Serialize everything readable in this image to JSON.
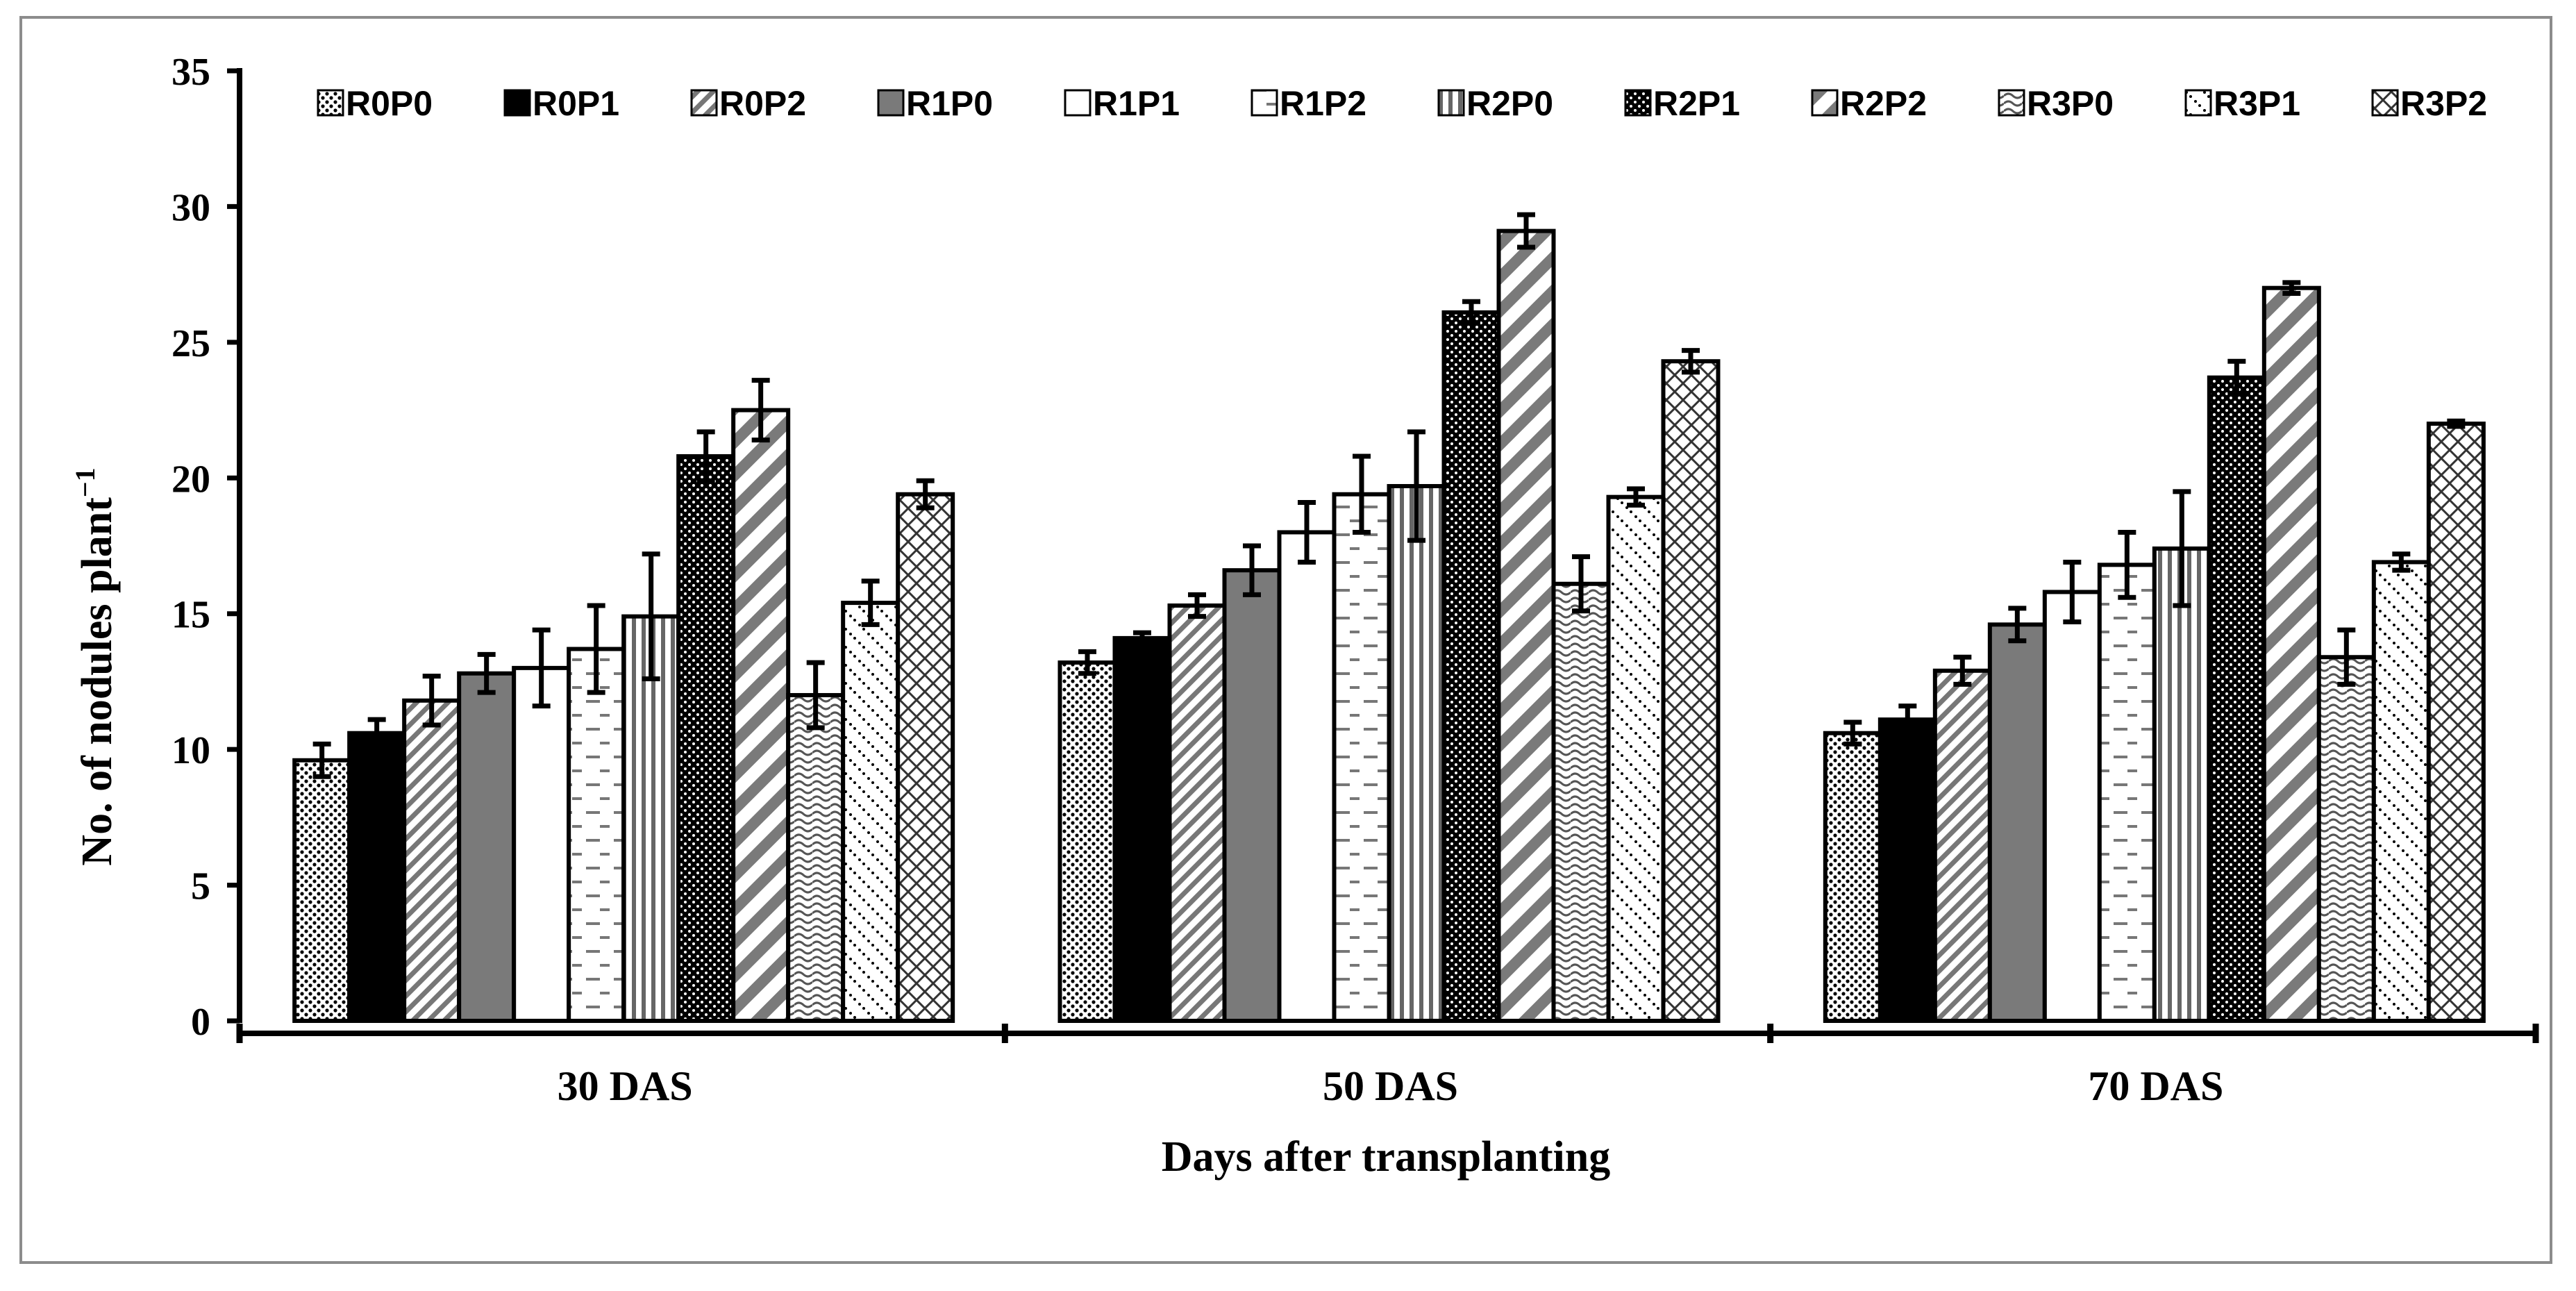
{
  "chart_data": {
    "type": "bar",
    "title": "",
    "xlabel": "Days after transplanting",
    "ylabel": "No. of nodules plant",
    "ylabel_superscript": "−1",
    "ylim": [
      0,
      35
    ],
    "yticks": [
      0,
      5,
      10,
      15,
      20,
      25,
      30,
      35
    ],
    "categories": [
      "30 DAS",
      "50 DAS",
      "70 DAS"
    ],
    "legend_position": "top",
    "series": [
      {
        "name": "R0P0",
        "pattern": "dots",
        "values": [
          9.6,
          13.2,
          10.6
        ],
        "errors": [
          0.6,
          0.4,
          0.4
        ]
      },
      {
        "name": "R0P1",
        "pattern": "solid-black",
        "values": [
          10.6,
          14.1,
          11.1
        ],
        "errors": [
          0.5,
          0.2,
          0.5
        ]
      },
      {
        "name": "R0P2",
        "pattern": "diag-fine",
        "values": [
          11.8,
          15.3,
          12.9
        ],
        "errors": [
          0.9,
          0.4,
          0.5
        ]
      },
      {
        "name": "R1P0",
        "pattern": "solid-gray",
        "values": [
          12.8,
          16.6,
          14.6
        ],
        "errors": [
          0.7,
          0.9,
          0.6
        ]
      },
      {
        "name": "R1P1",
        "pattern": "white",
        "values": [
          13.0,
          18.0,
          15.8
        ],
        "errors": [
          1.4,
          1.1,
          1.1
        ]
      },
      {
        "name": "R1P2",
        "pattern": "dashes",
        "values": [
          13.7,
          19.4,
          16.8
        ],
        "errors": [
          1.6,
          1.4,
          1.2
        ]
      },
      {
        "name": "R2P0",
        "pattern": "vert-lines",
        "values": [
          14.9,
          19.7,
          17.4
        ],
        "errors": [
          2.3,
          2.0,
          2.1
        ]
      },
      {
        "name": "R2P1",
        "pattern": "dots-dark",
        "values": [
          20.8,
          26.1,
          23.7
        ],
        "errors": [
          0.9,
          0.4,
          0.6
        ]
      },
      {
        "name": "R2P2",
        "pattern": "diag-wide",
        "values": [
          22.5,
          29.1,
          27.0
        ],
        "errors": [
          1.1,
          0.6,
          0.2
        ]
      },
      {
        "name": "R3P0",
        "pattern": "waves",
        "values": [
          12.0,
          16.1,
          13.4
        ],
        "errors": [
          1.2,
          1.0,
          1.0
        ]
      },
      {
        "name": "R3P1",
        "pattern": "dotted-diag",
        "values": [
          15.4,
          19.3,
          16.9
        ],
        "errors": [
          0.8,
          0.3,
          0.3
        ]
      },
      {
        "name": "R3P2",
        "pattern": "cross-hatch",
        "values": [
          19.4,
          24.3,
          22.0
        ],
        "errors": [
          0.5,
          0.4,
          0.1
        ]
      }
    ]
  }
}
